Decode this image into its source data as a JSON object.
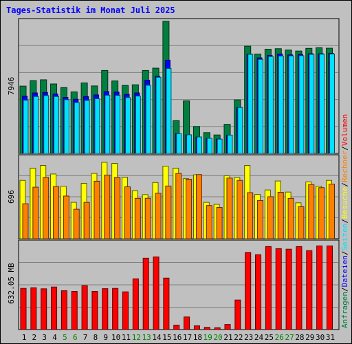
{
  "title": "Tages-Statistik im Monat Juli 2025",
  "colors": {
    "background": "#C0C0C0",
    "grid": "#808080",
    "weekend_label": "#008000",
    "weekday_label": "#000000",
    "anfragen": "#008040",
    "dateien": "#0000FF",
    "seiten": "#00E0FF",
    "besuche": "#FFFF00",
    "rechner": "#FF8000",
    "volumen": "#FF0000",
    "slash": "#000000"
  },
  "right_legend": {
    "top": [
      {
        "text": "Anfragen",
        "color_key": "anfragen"
      },
      {
        "text": "/",
        "color_key": "slash"
      },
      {
        "text": "Dateien",
        "color_key": "dateien"
      },
      {
        "text": "/",
        "color_key": "slash"
      },
      {
        "text": "Seiten",
        "color_key": "seiten"
      },
      {
        "text": "/",
        "color_key": "slash"
      },
      {
        "text": "Besuche",
        "color_key": "besuche"
      },
      {
        "text": "/",
        "color_key": "slash"
      },
      {
        "text": "Rechner",
        "color_key": "rechner"
      },
      {
        "text": "/",
        "color_key": "slash"
      },
      {
        "text": "Volumen",
        "color_key": "volumen"
      }
    ]
  },
  "chart_data": [
    {
      "type": "bar",
      "panel": "hits",
      "ylabel": "7946",
      "ylim": [
        0,
        7946
      ],
      "categories": [
        "1",
        "2",
        "3",
        "4",
        "5",
        "6",
        "7",
        "8",
        "9",
        "10",
        "11",
        "12",
        "13",
        "14",
        "15",
        "16",
        "17",
        "18",
        "19",
        "20",
        "21",
        "22",
        "23",
        "24",
        "25",
        "26",
        "27",
        "28",
        "29",
        "30",
        "31"
      ],
      "weekend": [
        5,
        6,
        12,
        13,
        19,
        20,
        26,
        27
      ],
      "series": [
        {
          "name": "Anfragen",
          "color_key": "anfragen",
          "values": [
            4050,
            4380,
            4430,
            4180,
            3960,
            3700,
            4240,
            4060,
            4990,
            4360,
            4090,
            4130,
            4990,
            5130,
            7946,
            1970,
            3160,
            1620,
            1250,
            1110,
            1750,
            3220,
            6450,
            5980,
            6270,
            6300,
            6220,
            6160,
            6320,
            6360,
            6330
          ]
        },
        {
          "name": "Dateien",
          "color_key": "dateien",
          "values": [
            3440,
            3640,
            3670,
            3570,
            3370,
            3260,
            3420,
            3520,
            3720,
            3690,
            3550,
            3640,
            4400,
            4640,
            5610,
            1190,
            1120,
            990,
            910,
            870,
            1100,
            2760,
            5980,
            5750,
            5900,
            5980,
            5930,
            5960,
            6000,
            6000,
            6020
          ]
        },
        {
          "name": "Seiten",
          "color_key": "seiten",
          "values": [
            3200,
            3420,
            3480,
            3420,
            3230,
            3060,
            3190,
            3290,
            3500,
            3490,
            3360,
            3450,
            4100,
            4580,
            5110,
            1190,
            1120,
            990,
            910,
            860,
            1100,
            2760,
            5960,
            5660,
            5830,
            5860,
            5870,
            5880,
            5960,
            5970,
            5980
          ]
        }
      ]
    },
    {
      "type": "bar",
      "panel": "visits",
      "ylabel": "696",
      "ylim": [
        0,
        696
      ],
      "series": [
        {
          "name": "Besuche",
          "color_key": "besuche",
          "values": [
            500,
            605,
            628,
            555,
            450,
            312,
            475,
            560,
            655,
            646,
            527,
            412,
            378,
            482,
            622,
            605,
            515,
            548,
            312,
            295,
            540,
            525,
            628,
            380,
            418,
            495,
            400,
            308,
            488,
            450,
            500
          ]
        },
        {
          "name": "Rechner",
          "color_key": "rechner",
          "values": [
            300,
            442,
            526,
            448,
            366,
            253,
            312,
            493,
            546,
            526,
            445,
            346,
            347,
            390,
            452,
            560,
            510,
            550,
            285,
            268,
            520,
            500,
            395,
            328,
            360,
            398,
            346,
            275,
            465,
            438,
            468
          ]
        }
      ]
    },
    {
      "type": "bar",
      "panel": "volume",
      "ylabel": "632.05 MB",
      "ylim": [
        0,
        632.05
      ],
      "series": [
        {
          "name": "Volumen",
          "color_key": "volumen",
          "values": [
            300,
            305,
            297,
            310,
            283,
            278,
            320,
            278,
            298,
            300,
            275,
            370,
            520,
            530,
            375,
            32,
            92,
            27,
            16,
            13,
            37,
            215,
            562,
            546,
            605,
            590,
            586,
            605,
            575,
            610,
            610
          ]
        }
      ]
    }
  ]
}
